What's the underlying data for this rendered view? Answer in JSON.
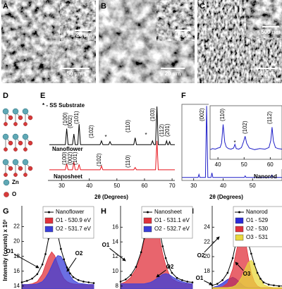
{
  "panel_labels": [
    "A",
    "B",
    "C",
    "D",
    "E",
    "F",
    "G",
    "H",
    "I"
  ],
  "sem": [
    {
      "scale_bar": "50 µm",
      "inset_scale_bar": "20 µm"
    },
    {
      "scale_bar": "20 µm",
      "inset_scale_bar": "10 µm"
    },
    {
      "scale_bar": "1 µm",
      "inset_scale_bar": "500 nm"
    }
  ],
  "structure": {
    "legend": [
      "Zn",
      "O"
    ]
  },
  "chart_data": [
    {
      "type": "line",
      "xlabel": "2θ (Degrees)",
      "note": "* - SS Substrate",
      "xlim": [
        25,
        71
      ],
      "xticks": [
        30,
        40,
        50,
        60,
        70
      ],
      "ylim": [
        0,
        100
      ],
      "series": [
        {
          "name": "Nanoflower",
          "color": "#000000",
          "x": [
            25.5,
            31.3,
            31.8,
            32.3,
            33.9,
            34.4,
            34.9,
            35.8,
            36.3,
            36.8,
            43.9,
            44.4,
            44.9,
            47.0,
            47.5,
            48.0,
            56.1,
            56.6,
            57.1,
            62.4,
            62.9,
            63.4,
            64.0,
            64.5,
            65.0,
            67.6,
            68.0,
            68.4,
            68.7,
            69.1,
            69.5,
            71
          ],
          "values": [
            47,
            47,
            68,
            47,
            47,
            61,
            47,
            47,
            74,
            47,
            47,
            52,
            47,
            47,
            51,
            47,
            47,
            56,
            47,
            47,
            52,
            47,
            47,
            97,
            47,
            47,
            52,
            47,
            47,
            51,
            47,
            47
          ],
          "peak_labels": [
            "(100)",
            "(002)",
            "(101)",
            "(102)",
            "*",
            "(110)",
            "*",
            "(103)",
            "(112)",
            "(201)"
          ]
        },
        {
          "name": "Nanosheet",
          "color": "#e8141c",
          "x": [
            25.5,
            31.3,
            31.8,
            32.3,
            33.9,
            34.4,
            34.9,
            35.8,
            36.3,
            36.8,
            43.9,
            44.4,
            44.9,
            56.1,
            56.6,
            57.1,
            64.0,
            64.5,
            65.0,
            71
          ],
          "values": [
            14,
            14,
            22,
            14,
            14,
            24,
            14,
            14,
            21,
            14,
            14,
            19,
            14,
            14,
            17,
            14,
            14,
            52,
            14,
            14
          ],
          "peak_labels": [
            "(100)",
            "(002)",
            "(101)",
            "(102)",
            "(110)"
          ]
        }
      ]
    },
    {
      "type": "line",
      "xlabel": "2θ (Degrees)",
      "xlim": [
        26,
        60
      ],
      "xticks": [
        30,
        40,
        50
      ],
      "ylim": [
        0,
        100
      ],
      "series": [
        {
          "name": "Nanorod",
          "color": "#1f1fc8",
          "x": [
            26,
            31.5,
            31.8,
            32.1,
            34.0,
            34.4,
            34.8,
            35.9,
            36.2,
            36.5,
            47.2,
            47.5,
            47.8,
            56.3,
            56.6,
            56.9,
            60
          ],
          "values": [
            4,
            4,
            8,
            4,
            4,
            98,
            4,
            4,
            10,
            4,
            4,
            6,
            4,
            4,
            7,
            4,
            4
          ],
          "peak_labels": [
            "(002)"
          ]
        }
      ]
    },
    {
      "type": "line",
      "xlim": [
        37,
        64.5
      ],
      "xticks": [
        40,
        50,
        60
      ],
      "ylim": [
        0,
        100
      ],
      "series": [
        {
          "color": "#1f1fc8",
          "x": [
            37,
            38,
            39,
            40,
            40.8,
            41.4,
            42.0,
            42.6,
            43.2,
            44,
            45,
            46,
            46.5,
            47,
            48,
            49,
            49.8,
            50.4,
            51,
            52,
            54,
            56,
            58,
            59.5,
            60.2,
            60.7,
            61.2,
            62,
            63,
            64.5
          ],
          "values": [
            18,
            20,
            19,
            21,
            22,
            30,
            65,
            32,
            23,
            20,
            19,
            21,
            28,
            20,
            19,
            22,
            33,
            43,
            30,
            21,
            18,
            20,
            19,
            22,
            35,
            60,
            34,
            22,
            20,
            19
          ],
          "peak_labels": [
            "(110)",
            "*",
            "(102)",
            "(112)"
          ]
        }
      ]
    },
    {
      "type": "area",
      "ylabel": "Intensity (counts) x 10³",
      "xlim": [
        528,
        535
      ],
      "ylim": [
        13.6,
        24.8
      ],
      "yticks": [
        14,
        16,
        18,
        20,
        22
      ],
      "x": [
        528,
        528.5,
        529,
        529.5,
        530,
        530.3,
        530.6,
        530.9,
        531.2,
        531.5,
        531.8,
        532.1,
        532.4,
        532.7,
        533,
        533.5,
        534,
        534.5,
        535
      ],
      "annotations": [
        "O1",
        "O2"
      ],
      "series": [
        {
          "name": "O1 - 530.9 eV",
          "color": "#e0323c",
          "fill": true,
          "values": [
            14.2,
            14.2,
            14.3,
            14.6,
            15.6,
            16.8,
            17.9,
            18.6,
            18.1,
            16.9,
            15.8,
            15.0,
            14.6,
            14.4,
            14.3,
            14.2,
            14.2,
            14.2,
            14.2
          ]
        },
        {
          "name": "O2 - 531.7 eV",
          "color": "#3a3fd9",
          "fill": true,
          "values": [
            14.2,
            14.2,
            14.2,
            14.3,
            14.6,
            15.1,
            15.8,
            16.7,
            17.6,
            18.1,
            18.0,
            17.3,
            16.3,
            15.4,
            14.8,
            14.4,
            14.3,
            14.2,
            14.2
          ]
        },
        {
          "name": "Nanoflower",
          "color": "#000000",
          "markers": true,
          "values": [
            14.5,
            14.7,
            15.0,
            15.6,
            16.9,
            18.3,
            20.4,
            22.8,
            22.5,
            20.9,
            19.0,
            17.6,
            16.5,
            15.7,
            15.2,
            14.8,
            14.6,
            14.5,
            14.4
          ]
        }
      ]
    },
    {
      "type": "area",
      "xlim": [
        528,
        535
      ],
      "ylim": [
        7.6,
        18.9
      ],
      "yticks": [
        8,
        10,
        12,
        14,
        16
      ],
      "x": [
        528,
        528.5,
        529,
        529.5,
        530,
        530.3,
        530.6,
        530.9,
        531.2,
        531.5,
        531.8,
        532.1,
        532.4,
        532.7,
        533,
        533.5,
        534,
        534.5,
        535
      ],
      "annotations": [
        "O1",
        "O2"
      ],
      "series": [
        {
          "name": "O1 - 531.1 eV",
          "color": "#e0323c",
          "fill": true,
          "values": [
            8.3,
            8.6,
            9.2,
            10.3,
            12.3,
            14.2,
            16.1,
            17.5,
            17.7,
            16.5,
            14.5,
            12.4,
            10.8,
            9.7,
            9.0,
            8.6,
            8.4,
            8.3,
            8.3
          ]
        },
        {
          "name": "O2 - 532.7 eV",
          "color": "#3a3fd9",
          "fill": true,
          "values": [
            8.3,
            8.3,
            8.3,
            8.3,
            8.3,
            8.3,
            8.4,
            8.5,
            8.7,
            9.0,
            9.3,
            9.6,
            9.7,
            9.6,
            9.3,
            8.9,
            8.6,
            8.4,
            8.3
          ]
        },
        {
          "name": "Nanosheet",
          "color": "#000000",
          "markers": true,
          "values": [
            8.6,
            8.9,
            9.5,
            10.6,
            12.6,
            14.5,
            16.4,
            17.9,
            18.2,
            17.2,
            15.4,
            13.4,
            11.8,
            10.6,
            9.8,
            9.1,
            8.8,
            8.6,
            8.5
          ]
        }
      ]
    },
    {
      "type": "area",
      "xlim": [
        528,
        535
      ],
      "ylim": [
        15.6,
        26.9
      ],
      "yticks": [
        18,
        20,
        22,
        24
      ],
      "x": [
        528,
        528.5,
        529,
        529.5,
        530,
        530.3,
        530.6,
        530.9,
        531.2,
        531.5,
        531.8,
        532.1,
        532.4,
        532.7,
        533,
        533.5,
        534,
        534.5,
        535
      ],
      "annotations": [
        "O1",
        "O2",
        "O3"
      ],
      "series": [
        {
          "name": "O1 - 529",
          "color": "#2b2bd6",
          "fill": true,
          "values": [
            15.8,
            16.0,
            16.4,
            16.9,
            17.2,
            17.0,
            16.6,
            16.2,
            15.9,
            15.8,
            15.8,
            15.8,
            15.8,
            15.8,
            15.8,
            15.8,
            15.8,
            15.8,
            15.8
          ]
        },
        {
          "name": "O2 - 530",
          "color": "#e0323c",
          "fill": true,
          "values": [
            15.8,
            15.8,
            15.9,
            16.4,
            18.3,
            20.4,
            22.3,
            23.3,
            22.4,
            20.0,
            17.8,
            16.6,
            16.0,
            15.8,
            15.8,
            15.8,
            15.8,
            15.8,
            15.8
          ]
        },
        {
          "name": "O3 - 531",
          "color": "#e8d83c",
          "fill": true,
          "values": [
            15.8,
            15.8,
            15.8,
            15.8,
            15.9,
            16.1,
            16.6,
            17.3,
            18.3,
            19.2,
            19.5,
            19.0,
            17.9,
            16.9,
            16.2,
            15.9,
            15.8,
            15.8,
            15.8
          ]
        },
        {
          "name": "Nanorod",
          "color": "#000000",
          "markers": true,
          "values": [
            16.1,
            16.3,
            16.8,
            17.8,
            19.8,
            21.8,
            23.6,
            24.3,
            23.4,
            21.9,
            20.4,
            19.0,
            17.8,
            17.0,
            16.5,
            16.2,
            16.1,
            16.0,
            16.0
          ]
        }
      ]
    }
  ]
}
